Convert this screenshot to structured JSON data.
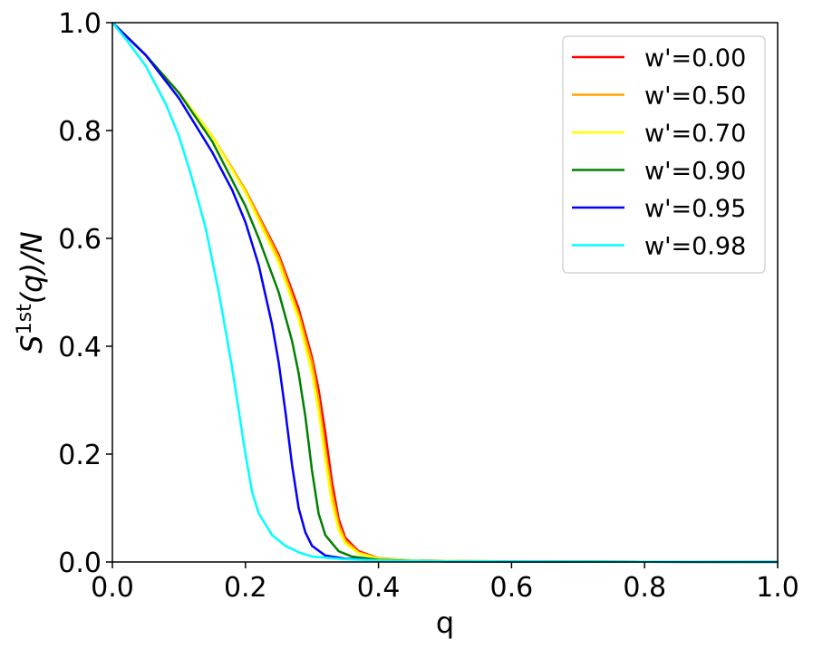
{
  "chart_data": {
    "type": "line",
    "title": "",
    "xlabel": "q",
    "ylabel_base": "S",
    "ylabel_sup": "1st",
    "ylabel_rest": "(q)/N",
    "xlim": [
      0,
      1
    ],
    "ylim": [
      0,
      1
    ],
    "xticks": [
      "0.0",
      "0.2",
      "0.4",
      "0.6",
      "0.8",
      "1.0"
    ],
    "yticks": [
      "0.0",
      "0.2",
      "0.4",
      "0.6",
      "0.8",
      "1.0"
    ],
    "grid": false,
    "legend_position": "top-right",
    "series": [
      {
        "name": "w'=0.00",
        "color": "#ff0000",
        "x": [
          0,
          0.05,
          0.1,
          0.15,
          0.2,
          0.25,
          0.28,
          0.3,
          0.31,
          0.32,
          0.33,
          0.34,
          0.35,
          0.37,
          0.4,
          0.45,
          0.5,
          0.6,
          0.8,
          1.0
        ],
        "y": [
          1.0,
          0.94,
          0.87,
          0.79,
          0.69,
          0.57,
          0.47,
          0.38,
          0.32,
          0.24,
          0.15,
          0.08,
          0.045,
          0.02,
          0.007,
          0.003,
          0.002,
          0.001,
          0.0005,
          0.0003
        ]
      },
      {
        "name": "w'=0.50",
        "color": "#ffa500",
        "x": [
          0,
          0.05,
          0.1,
          0.15,
          0.2,
          0.25,
          0.28,
          0.3,
          0.31,
          0.32,
          0.33,
          0.34,
          0.35,
          0.37,
          0.4,
          0.45,
          0.5,
          0.6,
          0.8,
          1.0
        ],
        "y": [
          1.0,
          0.94,
          0.87,
          0.79,
          0.69,
          0.565,
          0.46,
          0.37,
          0.3,
          0.21,
          0.13,
          0.07,
          0.04,
          0.018,
          0.007,
          0.003,
          0.002,
          0.001,
          0.0005,
          0.0003
        ]
      },
      {
        "name": "w'=0.70",
        "color": "#ffff00",
        "x": [
          0,
          0.05,
          0.1,
          0.15,
          0.2,
          0.25,
          0.28,
          0.3,
          0.31,
          0.32,
          0.33,
          0.34,
          0.35,
          0.37,
          0.4,
          0.45,
          0.5,
          0.6,
          0.8,
          1.0
        ],
        "y": [
          1.0,
          0.94,
          0.87,
          0.79,
          0.685,
          0.555,
          0.45,
          0.35,
          0.28,
          0.19,
          0.11,
          0.06,
          0.035,
          0.016,
          0.006,
          0.003,
          0.002,
          0.001,
          0.0005,
          0.0003
        ]
      },
      {
        "name": "w'=0.90",
        "color": "#008000",
        "x": [
          0,
          0.05,
          0.1,
          0.15,
          0.2,
          0.22,
          0.25,
          0.27,
          0.28,
          0.29,
          0.3,
          0.31,
          0.32,
          0.34,
          0.36,
          0.4,
          0.45,
          0.5,
          0.6,
          0.8,
          1.0
        ],
        "y": [
          1.0,
          0.94,
          0.87,
          0.78,
          0.66,
          0.6,
          0.5,
          0.41,
          0.35,
          0.27,
          0.17,
          0.09,
          0.05,
          0.02,
          0.01,
          0.004,
          0.002,
          0.001,
          0.0008,
          0.0004,
          0.0002
        ]
      },
      {
        "name": "w'=0.95",
        "color": "#0000ff",
        "x": [
          0,
          0.05,
          0.1,
          0.15,
          0.18,
          0.2,
          0.22,
          0.24,
          0.25,
          0.26,
          0.27,
          0.28,
          0.29,
          0.3,
          0.32,
          0.35,
          0.4,
          0.5,
          0.6,
          0.8,
          1.0
        ],
        "y": [
          1.0,
          0.94,
          0.86,
          0.76,
          0.69,
          0.63,
          0.55,
          0.44,
          0.37,
          0.28,
          0.18,
          0.1,
          0.055,
          0.03,
          0.012,
          0.006,
          0.003,
          0.001,
          0.0008,
          0.0004,
          0.0002
        ]
      },
      {
        "name": "w'=0.98",
        "color": "#00ffff",
        "x": [
          0,
          0.02,
          0.05,
          0.08,
          0.1,
          0.12,
          0.14,
          0.16,
          0.17,
          0.18,
          0.19,
          0.2,
          0.21,
          0.22,
          0.24,
          0.26,
          0.28,
          0.3,
          0.35,
          0.4,
          0.5,
          0.6,
          0.8,
          1.0
        ],
        "y": [
          1.0,
          0.97,
          0.92,
          0.85,
          0.79,
          0.71,
          0.62,
          0.5,
          0.43,
          0.36,
          0.28,
          0.2,
          0.13,
          0.09,
          0.05,
          0.03,
          0.018,
          0.01,
          0.005,
          0.003,
          0.0015,
          0.001,
          0.0005,
          0.0002
        ]
      }
    ]
  }
}
